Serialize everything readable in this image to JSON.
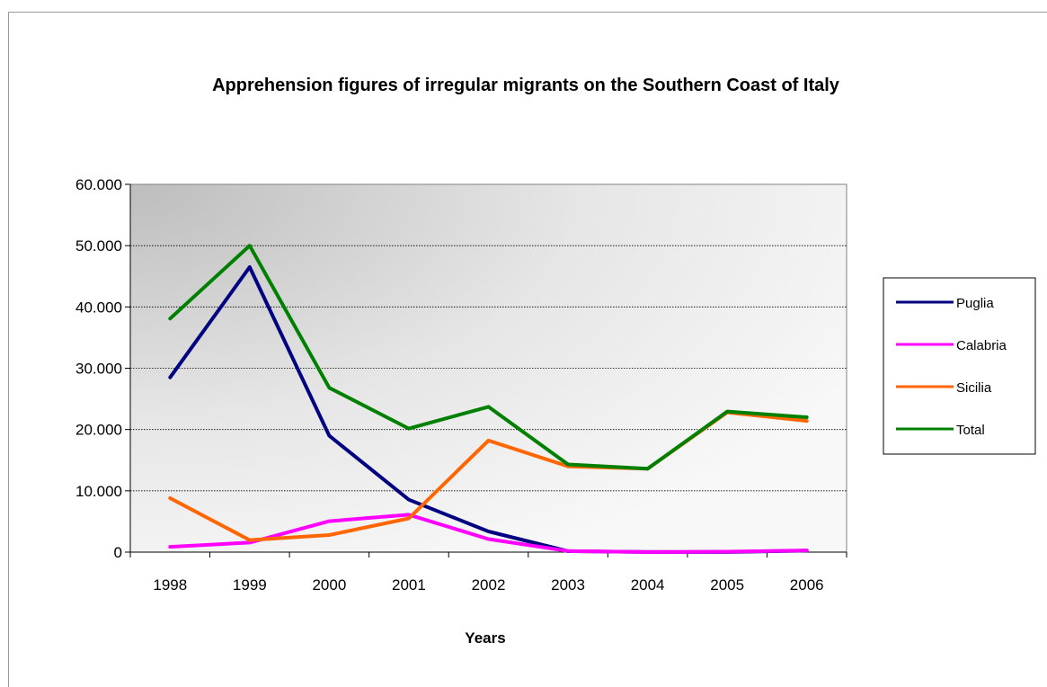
{
  "chart_data": {
    "type": "line",
    "title": "Apprehension figures of irregular migrants on the Southern Coast of Italy",
    "xlabel": "Years",
    "ylabel": "",
    "categories": [
      "1998",
      "1999",
      "2000",
      "2001",
      "2002",
      "2003",
      "2004",
      "2005",
      "2006"
    ],
    "ylim": [
      0,
      60000
    ],
    "yticks": [
      {
        "value": 0,
        "label": "0"
      },
      {
        "value": 10000,
        "label": "10.000"
      },
      {
        "value": 20000,
        "label": "20.000"
      },
      {
        "value": 30000,
        "label": "30.000"
      },
      {
        "value": 40000,
        "label": "40.000"
      },
      {
        "value": 50000,
        "label": "50.000"
      },
      {
        "value": 60000,
        "label": "60.000"
      }
    ],
    "grid": true,
    "legend_position": "right",
    "series": [
      {
        "name": "Puglia",
        "color": "#000080",
        "values": [
          28500,
          46500,
          18990,
          8550,
          3370,
          140,
          20,
          20,
          240
        ]
      },
      {
        "name": "Calabria",
        "color": "#ff00ff",
        "values": [
          870,
          1550,
          5050,
          6100,
          2120,
          180,
          20,
          80,
          280
        ]
      },
      {
        "name": "Sicilia",
        "color": "#ff6600",
        "values": [
          8800,
          1970,
          2780,
          5500,
          18200,
          14000,
          13600,
          22800,
          21400
        ]
      },
      {
        "name": "Total",
        "color": "#008000",
        "values": [
          38100,
          50000,
          26800,
          20150,
          23700,
          14300,
          13600,
          22950,
          22000
        ]
      }
    ]
  }
}
